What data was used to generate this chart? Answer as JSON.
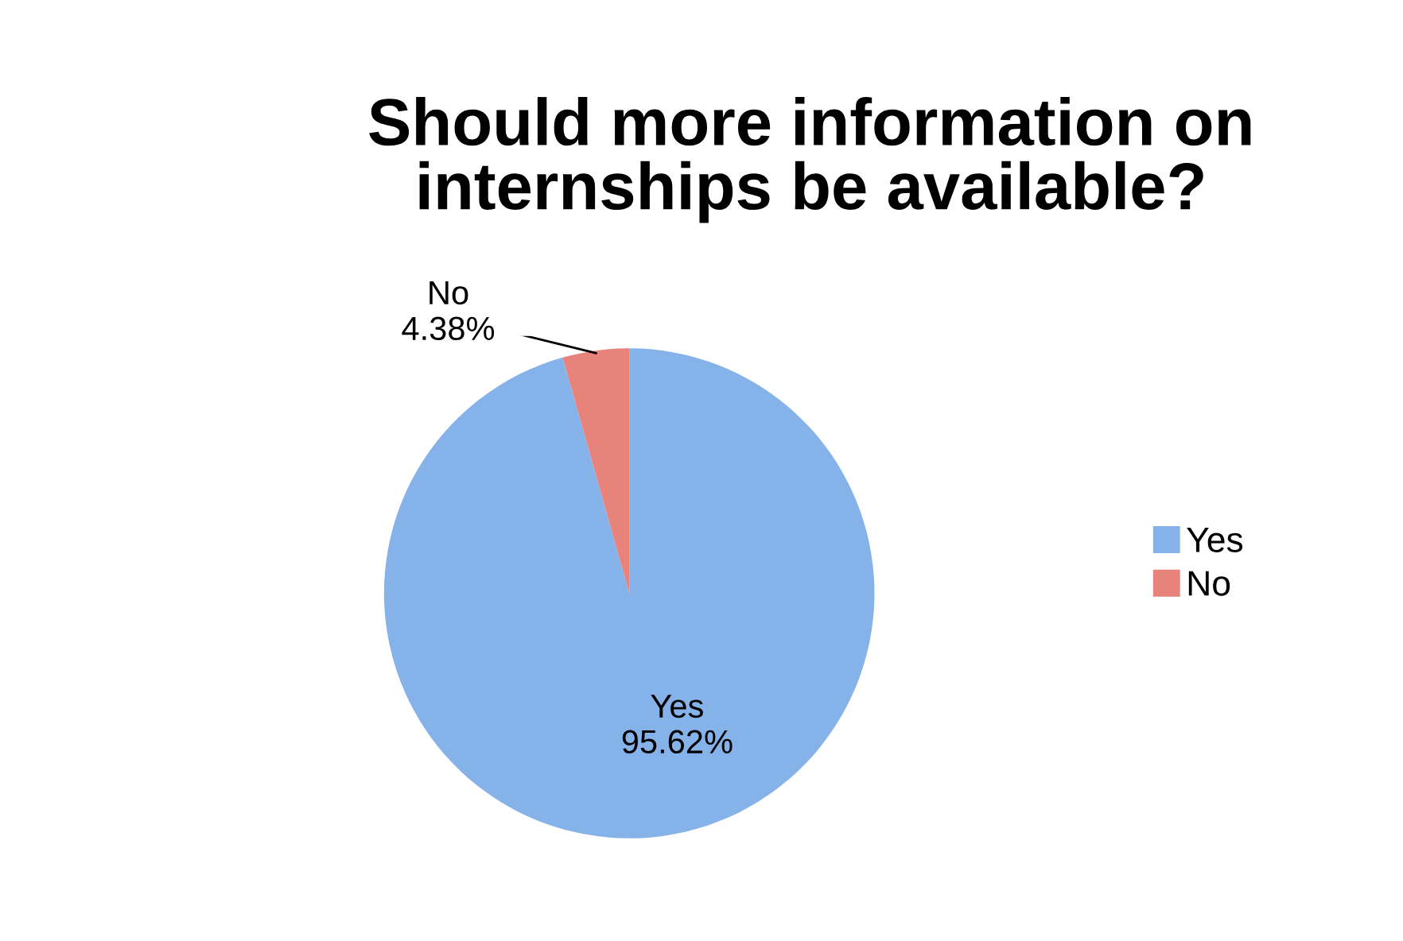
{
  "chart_data": {
    "type": "pie",
    "title": "Should more information on\ninternships be available?",
    "categories": [
      "Yes",
      "No"
    ],
    "values": [
      95.62,
      4.38
    ],
    "colors": [
      "#86b2ea",
      "#e8837c"
    ],
    "value_labels": [
      "95.62%",
      "4.38%"
    ],
    "legend": "right"
  }
}
